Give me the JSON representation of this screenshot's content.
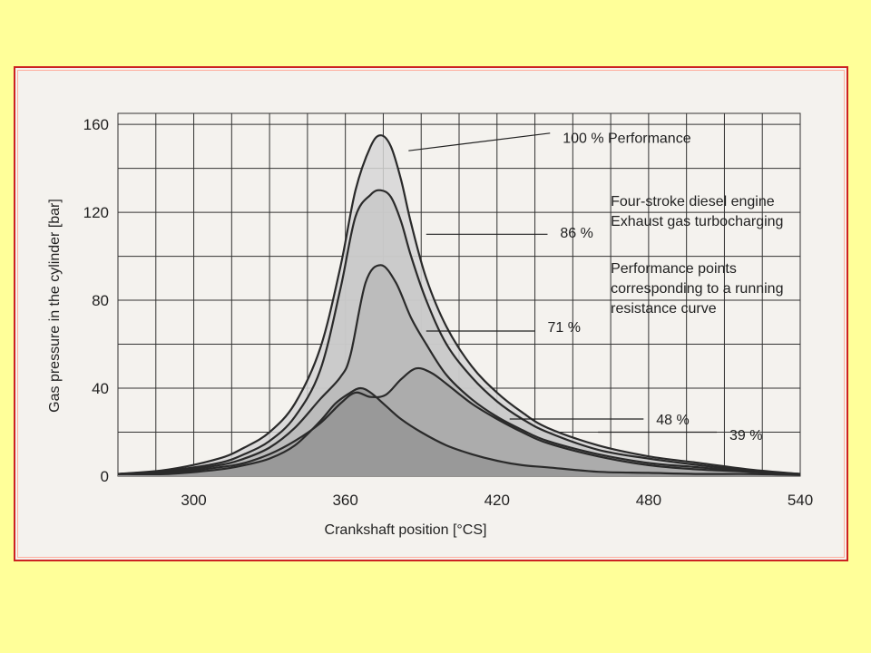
{
  "chart_data": {
    "type": "area",
    "title": "",
    "xlabel": "Crankshaft position [°CS]",
    "ylabel": "Gas pressure in the cylinder [bar]",
    "xlim": [
      270,
      540
    ],
    "ylim": [
      0,
      165
    ],
    "x_ticks": [
      300,
      360,
      420,
      480,
      540
    ],
    "y_ticks": [
      0,
      40,
      80,
      120,
      160
    ],
    "grid": true,
    "legend_text": [
      "Four-stroke diesel engine",
      "Exhaust gas turbocharging",
      "Performance points",
      "corresponding to a running",
      "resistance curve"
    ],
    "series": [
      {
        "name": "100 % Performance",
        "x": [
          270,
          290,
          310,
          320,
          330,
          340,
          350,
          358,
          364,
          370,
          374,
          378,
          382,
          386,
          392,
          400,
          410,
          420,
          430,
          440,
          460,
          480,
          500,
          520,
          540
        ],
        "y": [
          1,
          3,
          8,
          13,
          20,
          33,
          58,
          95,
          130,
          150,
          155,
          150,
          135,
          115,
          90,
          68,
          50,
          38,
          29,
          22,
          14,
          9,
          6,
          3,
          1
        ]
      },
      {
        "name": "86 %",
        "x": [
          270,
          290,
          310,
          320,
          330,
          340,
          350,
          358,
          364,
          370,
          374,
          378,
          382,
          386,
          392,
          400,
          410,
          420,
          430,
          440,
          460,
          480,
          500,
          520,
          540
        ],
        "y": [
          1,
          2.5,
          6,
          10,
          16,
          27,
          48,
          85,
          118,
          128,
          130,
          127,
          116,
          100,
          80,
          60,
          45,
          34,
          26,
          20,
          12,
          8,
          5,
          2.5,
          1
        ]
      },
      {
        "name": "71 %",
        "x": [
          270,
          290,
          310,
          320,
          330,
          340,
          350,
          358,
          362,
          368,
          374,
          380,
          386,
          392,
          400,
          410,
          420,
          430,
          440,
          460,
          480,
          500,
          520,
          540
        ],
        "y": [
          1,
          2,
          5,
          8,
          13,
          22,
          35,
          45,
          55,
          88,
          96,
          88,
          72,
          60,
          46,
          35,
          27,
          21,
          16,
          10,
          6,
          4,
          2,
          1
        ]
      },
      {
        "name": "48 %",
        "x": [
          270,
          290,
          310,
          320,
          330,
          340,
          350,
          358,
          364,
          370,
          376,
          382,
          388,
          394,
          400,
          410,
          420,
          430,
          440,
          460,
          480,
          500,
          520,
          540
        ],
        "y": [
          1,
          1.5,
          4,
          6,
          10,
          16,
          24,
          33,
          38,
          36,
          37,
          44,
          49,
          47,
          42,
          33,
          26,
          20,
          15,
          9,
          5,
          3,
          2,
          1
        ]
      },
      {
        "name": "39 %",
        "x": [
          270,
          290,
          310,
          320,
          330,
          340,
          350,
          356,
          362,
          366,
          370,
          376,
          382,
          390,
          400,
          410,
          420,
          430,
          440,
          460,
          480,
          500,
          520,
          540
        ],
        "y": [
          1,
          1,
          3,
          5,
          8,
          14,
          25,
          33,
          38,
          40,
          38,
          32,
          26,
          20,
          14,
          10,
          7,
          5,
          4,
          2,
          1.5,
          1,
          1,
          0.5
        ]
      }
    ]
  }
}
